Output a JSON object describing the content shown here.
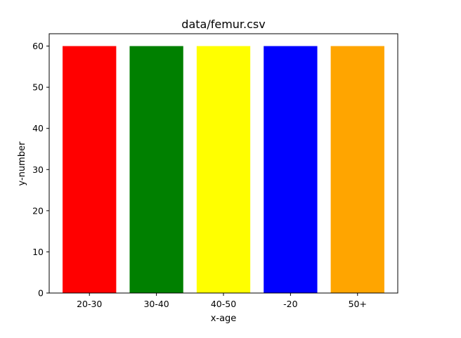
{
  "chart_data": {
    "type": "bar",
    "title": "data/femur.csv",
    "xlabel": "x-age",
    "ylabel": "y-number",
    "categories": [
      "20-30",
      "30-40",
      "40-50",
      "-20",
      "50+"
    ],
    "values": [
      60,
      60,
      60,
      60,
      60
    ],
    "colors": [
      "#ff0000",
      "#008000",
      "#ffff00",
      "#0000ff",
      "#ffa500"
    ],
    "ylim": [
      0,
      63
    ],
    "yticks": [
      0,
      10,
      20,
      30,
      40,
      50,
      60
    ],
    "grid": false,
    "legend": "none"
  }
}
